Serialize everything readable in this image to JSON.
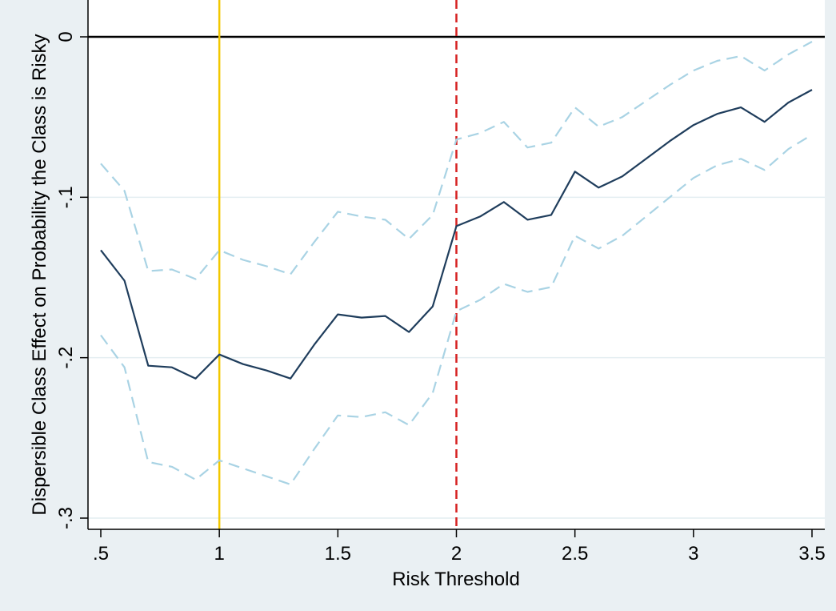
{
  "chart_data": {
    "type": "line",
    "title": "",
    "xlabel": "Risk Threshold",
    "ylabel": "Dispersible Class Effect on Probability the Class is Risky",
    "xlim": [
      0.45,
      3.55
    ],
    "ylim": [
      -0.31,
      0.0
    ],
    "x_ticks": [
      0.5,
      1,
      1.5,
      2,
      2.5,
      3,
      3.5
    ],
    "x_tick_labels": [
      ".5",
      "1",
      "1.5",
      "2",
      "2.5",
      "3",
      "3.5"
    ],
    "y_ticks": [
      0,
      -0.1,
      -0.2,
      -0.3
    ],
    "y_tick_labels": [
      "0",
      "-.1",
      "-.2",
      "-.3"
    ],
    "grid": true,
    "x": [
      0.5,
      0.6,
      0.7,
      0.8,
      0.9,
      1.0,
      1.1,
      1.2,
      1.3,
      1.4,
      1.5,
      1.6,
      1.7,
      1.8,
      1.9,
      2.0,
      2.1,
      2.2,
      2.3,
      2.4,
      2.5,
      2.6,
      2.7,
      2.8,
      2.9,
      3.0,
      3.1,
      3.2,
      3.3,
      3.4,
      3.5
    ],
    "series": [
      {
        "role": "estimate",
        "color": "#1f3d5c",
        "style": "solid",
        "values": [
          -0.133,
          -0.152,
          -0.205,
          -0.206,
          -0.213,
          -0.198,
          -0.204,
          -0.208,
          -0.213,
          -0.192,
          -0.173,
          -0.175,
          -0.174,
          -0.184,
          -0.168,
          -0.118,
          -0.112,
          -0.103,
          -0.114,
          -0.111,
          -0.084,
          -0.094,
          -0.087,
          -0.076,
          -0.065,
          -0.055,
          -0.048,
          -0.044,
          -0.053,
          -0.041,
          -0.033
        ]
      },
      {
        "role": "upper-ci",
        "color": "#a9d3e4",
        "style": "dashed",
        "values": [
          -0.079,
          -0.096,
          -0.146,
          -0.145,
          -0.151,
          -0.133,
          -0.139,
          -0.143,
          -0.148,
          -0.128,
          -0.109,
          -0.112,
          -0.114,
          -0.126,
          -0.111,
          -0.064,
          -0.06,
          -0.053,
          -0.069,
          -0.066,
          -0.044,
          -0.056,
          -0.05,
          -0.04,
          -0.03,
          -0.021,
          -0.015,
          -0.012,
          -0.021,
          -0.011,
          -0.003
        ]
      },
      {
        "role": "lower-ci",
        "color": "#a9d3e4",
        "style": "dashed",
        "values": [
          -0.186,
          -0.206,
          -0.265,
          -0.268,
          -0.276,
          -0.264,
          -0.269,
          -0.274,
          -0.279,
          -0.257,
          -0.236,
          -0.237,
          -0.234,
          -0.242,
          -0.222,
          -0.171,
          -0.164,
          -0.154,
          -0.159,
          -0.156,
          -0.124,
          -0.132,
          -0.124,
          -0.112,
          -0.1,
          -0.088,
          -0.08,
          -0.076,
          -0.083,
          -0.07,
          -0.061
        ]
      }
    ],
    "reference_lines": [
      {
        "axis": "y",
        "value": 0,
        "color": "#000000",
        "style": "solid"
      },
      {
        "axis": "x",
        "value": 1,
        "color": "#f2c800",
        "style": "solid"
      },
      {
        "axis": "x",
        "value": 2,
        "color": "#d62020",
        "style": "dashed"
      }
    ]
  }
}
